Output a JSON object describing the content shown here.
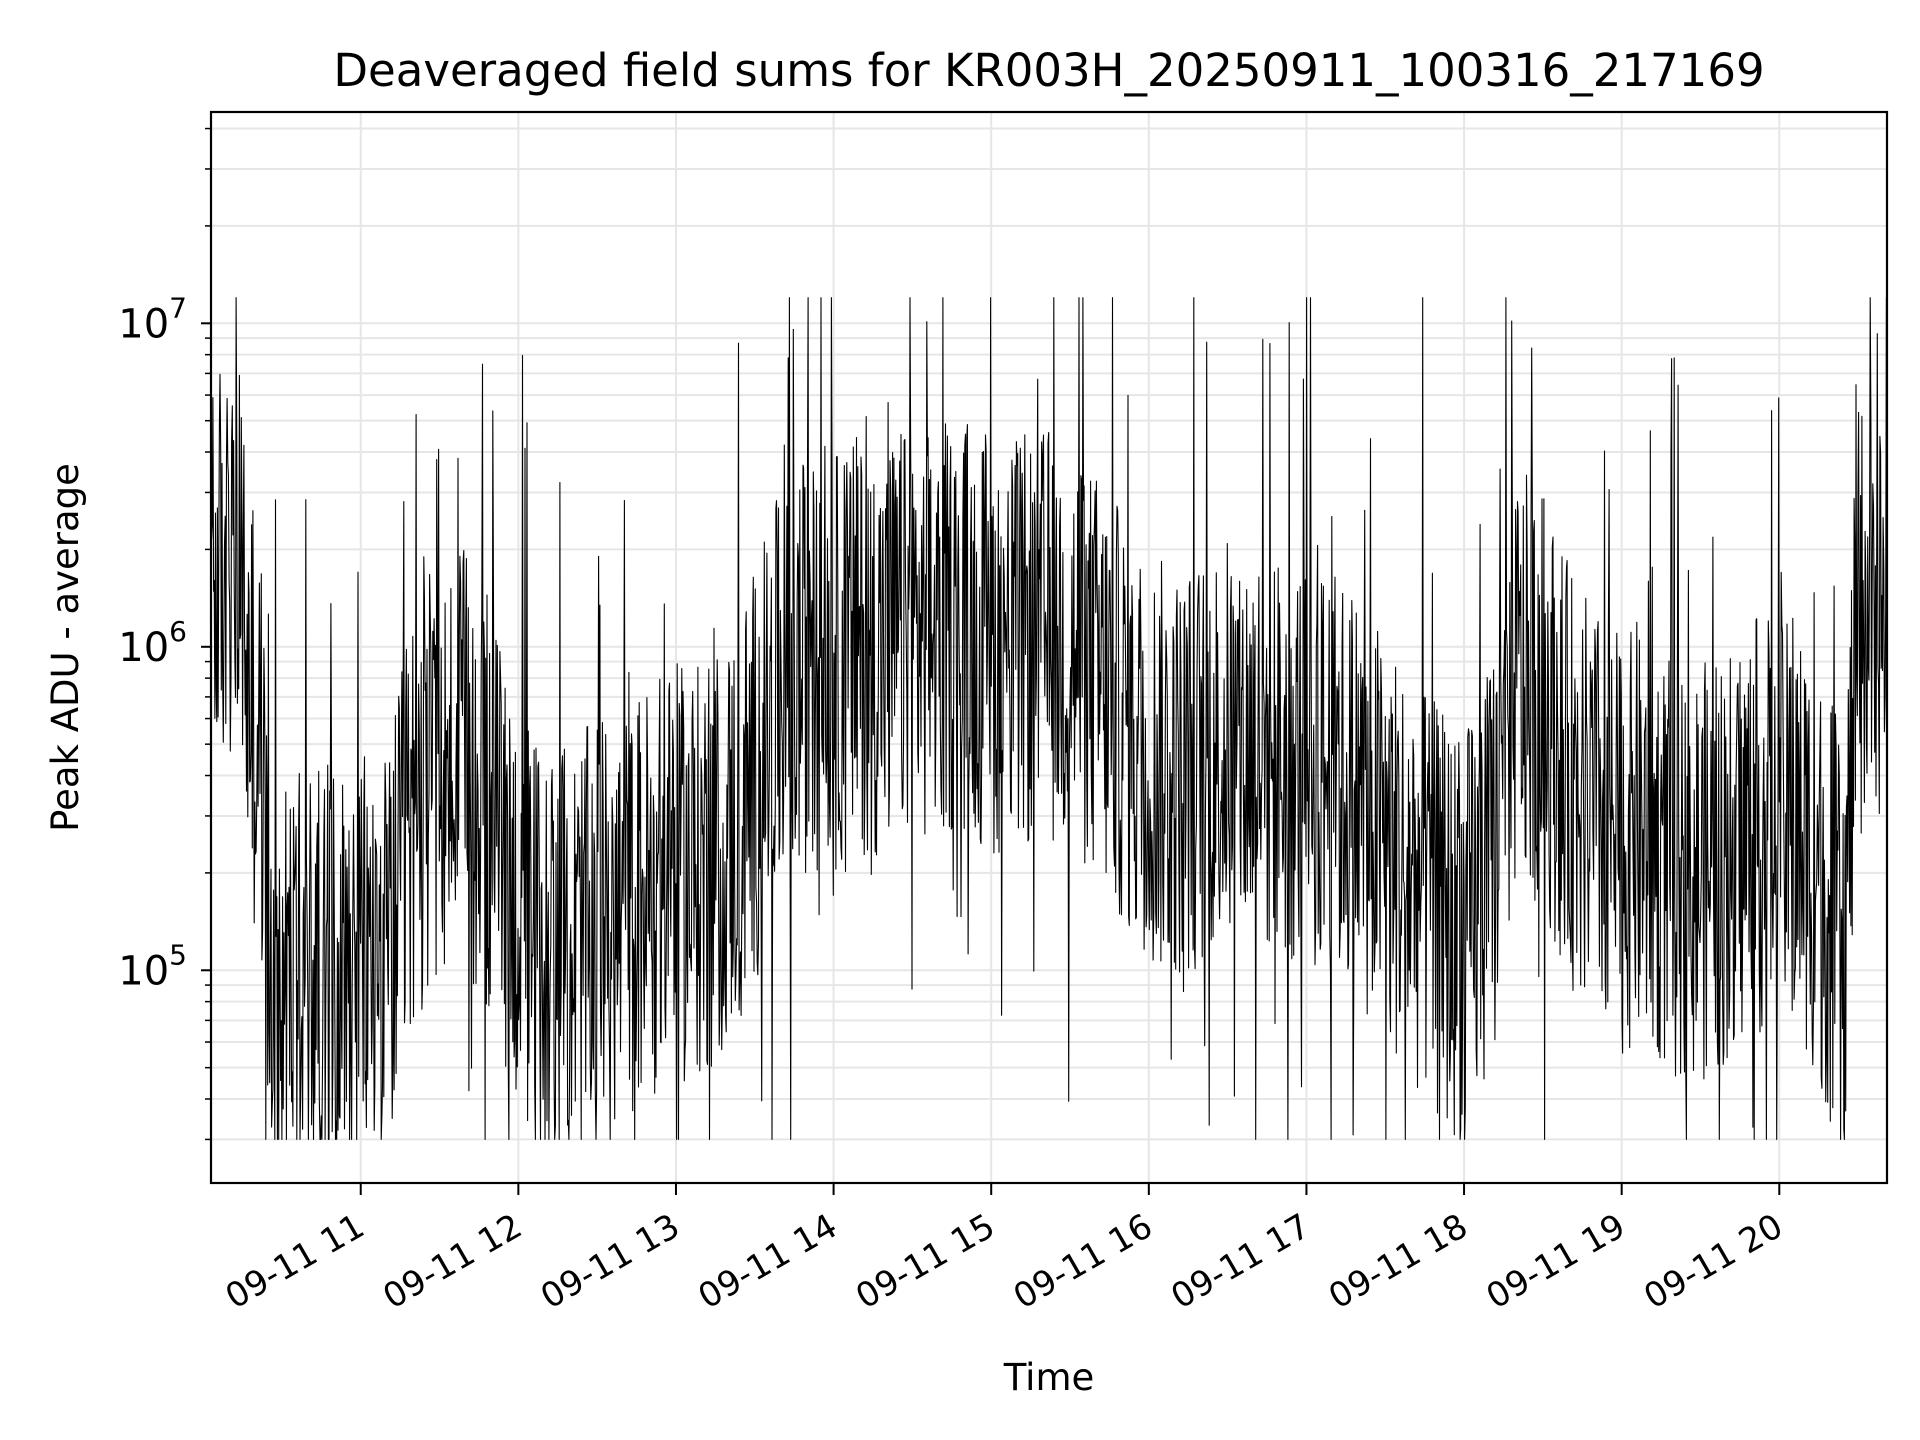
{
  "chart_data": {
    "type": "line",
    "title": "Deaveraged field sums for KR003H_20250911_100316_217169",
    "xlabel": "Time",
    "ylabel": "Peak ADU - average",
    "y_scale": "log",
    "ylim": [
      22000,
      45000000
    ],
    "xlim": [
      "2025-09-11 10:03",
      "2025-09-11 20:41"
    ],
    "grid": true,
    "line_color": "#000000",
    "x_ticks": [
      "09-11 11",
      "09-11 12",
      "09-11 13",
      "09-11 14",
      "09-11 15",
      "09-11 16",
      "09-11 17",
      "09-11 18",
      "09-11 19",
      "09-11 20"
    ],
    "y_ticks": [
      {
        "base": "10",
        "exp": "5"
      },
      {
        "base": "10",
        "exp": "6"
      },
      {
        "base": "10",
        "exp": "7"
      }
    ],
    "series": [
      {
        "x": [
          "10:03",
          "10:15",
          "10:17",
          "10:22",
          "10:25",
          "10:30",
          "10:38",
          "10:45",
          "10:50",
          "11:00",
          "11:10",
          "11:20",
          "11:30",
          "11:40",
          "11:50",
          "12:00",
          "12:10",
          "12:20",
          "12:30",
          "12:40",
          "12:50",
          "13:00",
          "13:10",
          "13:20",
          "13:30",
          "13:40",
          "13:50",
          "14:00",
          "14:10",
          "14:20",
          "14:30",
          "14:40",
          "14:50",
          "15:00",
          "15:10",
          "15:20",
          "15:30",
          "15:40",
          "15:50",
          "16:00",
          "16:10",
          "16:20",
          "16:30",
          "16:40",
          "16:50",
          "17:00",
          "17:10",
          "17:20",
          "17:30",
          "17:40",
          "17:50",
          "18:00",
          "18:10",
          "18:20",
          "18:30",
          "18:40",
          "18:50",
          "19:00",
          "19:10",
          "19:20",
          "19:30",
          "19:40",
          "19:50",
          "20:00",
          "20:10",
          "20:20",
          "20:25",
          "20:30",
          "20:41"
        ],
        "y": [
          1800000,
          1600000,
          700000,
          500000,
          100000,
          90000,
          95000,
          100000,
          105000,
          110000,
          105000,
          300000,
          400000,
          450000,
          300000,
          150000,
          120000,
          110000,
          140000,
          150000,
          180000,
          200000,
          200000,
          250000,
          400000,
          700000,
          900000,
          900000,
          1000000,
          1000000,
          1100000,
          1100000,
          1200000,
          1000000,
          1000000,
          1100000,
          1000000,
          800000,
          600000,
          450000,
          400000,
          450000,
          500000,
          500000,
          450000,
          450000,
          400000,
          350000,
          250000,
          200000,
          150000,
          120000,
          200000,
          800000,
          700000,
          400000,
          300000,
          250000,
          250000,
          200000,
          200000,
          220000,
          280000,
          280000,
          250000,
          150000,
          130000,
          1300000,
          1300000
        ]
      }
    ]
  }
}
